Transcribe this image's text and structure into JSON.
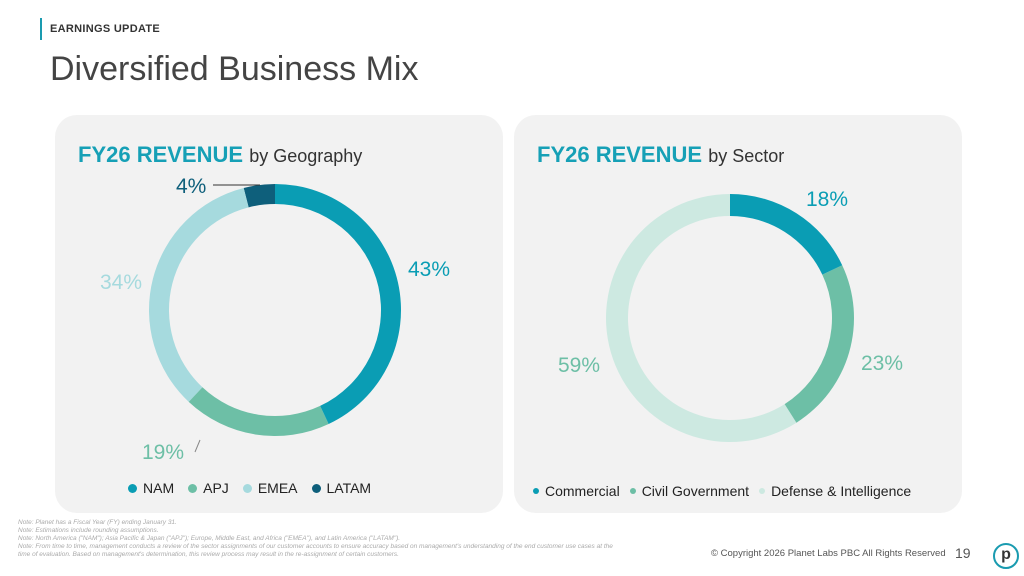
{
  "header": {
    "kicker": "EARNINGS UPDATE",
    "title": "Diversified Business Mix"
  },
  "chart_data": [
    {
      "type": "pie",
      "variant": "donut",
      "title": "FY26 REVENUE",
      "subtitle": "by Geography",
      "categories": [
        "NAM",
        "APJ",
        "EMEA",
        "LATAM"
      ],
      "values": [
        43,
        19,
        34,
        4
      ],
      "labels": [
        "43%",
        "19%",
        "34%",
        "4%"
      ],
      "colors": [
        "#0a9db4",
        "#6dbfa6",
        "#a6dade",
        "#0e5f7b"
      ],
      "legend_position": "bottom"
    },
    {
      "type": "pie",
      "variant": "donut",
      "title": "FY26 REVENUE",
      "subtitle": "by Sector",
      "categories": [
        "Commercial",
        "Civil Government",
        "Defense & Intelligence"
      ],
      "values": [
        18,
        23,
        59
      ],
      "labels": [
        "18%",
        "23%",
        "59%"
      ],
      "colors": [
        "#0a9db4",
        "#6dbfa6",
        "#cde9e1"
      ],
      "legend_position": "bottom"
    }
  ],
  "footer": {
    "notes": [
      "Note: Planet has a Fiscal Year (FY) ending January 31.",
      "Note: Estimations include rounding assumptions.",
      "Note: North America (\"NAM\"); Asia Pacific & Japan (\"APJ\"); Europe, Middle East, and Africa (\"EMEA\"), and Latin America (\"LATAM\").",
      "Note:  From time to time, management conducts a review of the sector assignments of our customer accounts to ensure accuracy based on management's understanding of the end customer use cases at the time of evaluation. Based on management's determination, this review process may result in the re-assignment of certain customers."
    ],
    "copyright": "© Copyright 2026 Planet Labs PBC  All Rights Reserved",
    "page": "19",
    "logo": "p"
  }
}
